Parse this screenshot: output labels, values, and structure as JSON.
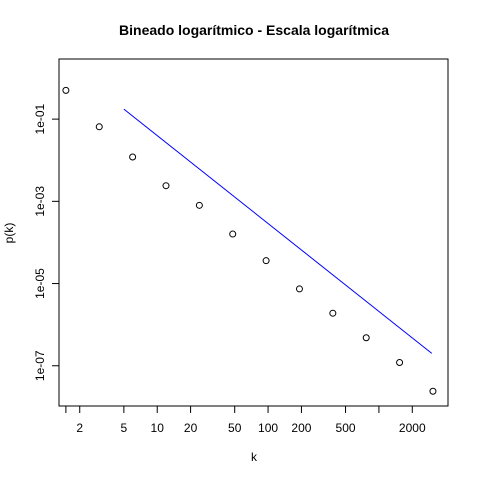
{
  "chart_data": {
    "type": "scatter",
    "title": "Bineado logarítmico - Escala logarítmica",
    "xlabel": "k",
    "ylabel": "p(k)",
    "log_x": true,
    "log_y": true,
    "xlim": [
      1.3,
      4200
    ],
    "ylim": [
      1.05e-08,
      2.9
    ],
    "x_ticks": [
      {
        "value": 1.5,
        "label": ""
      },
      {
        "value": 2,
        "label": "2"
      },
      {
        "value": 5,
        "label": "5"
      },
      {
        "value": 10,
        "label": "10"
      },
      {
        "value": 20,
        "label": "20"
      },
      {
        "value": 50,
        "label": "50"
      },
      {
        "value": 100,
        "label": "100"
      },
      {
        "value": 200,
        "label": "200"
      },
      {
        "value": 500,
        "label": "500"
      },
      {
        "value": 1000,
        "label": ""
      },
      {
        "value": 2000,
        "label": "2000"
      }
    ],
    "y_ticks": [
      {
        "value": 1e-07,
        "label": "1e-07"
      },
      {
        "value": 1e-05,
        "label": "1e-05"
      },
      {
        "value": 0.001,
        "label": "1e-03"
      },
      {
        "value": 0.1,
        "label": "1e-01"
      }
    ],
    "points": {
      "marker": "open-circle",
      "color": "#000000",
      "x": [
        1.5,
        3,
        6,
        12,
        24,
        48,
        96,
        192,
        384,
        768,
        1536,
        3072
      ],
      "y": [
        0.5,
        0.065,
        0.012,
        0.0024,
        0.0008,
        0.00016,
        3.6e-05,
        7.4e-06,
        1.9e-06,
        4.8e-07,
        1.2e-07,
        2.4e-08
      ]
    },
    "line": {
      "color": "#0000ff",
      "x": [
        5,
        3000
      ],
      "y": [
        0.175,
        2e-07
      ]
    }
  }
}
